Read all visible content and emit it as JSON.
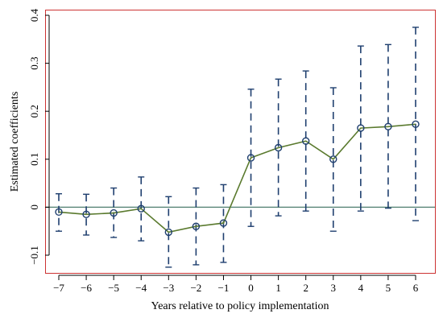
{
  "chart_data": {
    "type": "line",
    "title": "",
    "xlabel": "Years relative to policy implementation",
    "ylabel": "Estimated coefficients",
    "x": [
      -7,
      -6,
      -5,
      -4,
      -3,
      -2,
      -1,
      0,
      1,
      2,
      3,
      4,
      5,
      6
    ],
    "x_tick_labels": [
      "−7",
      "−6",
      "−5",
      "−4",
      "−3",
      "−2",
      "−1",
      "0",
      "1",
      "2",
      "3",
      "4",
      "5",
      "6"
    ],
    "y_ticks": [
      -0.1,
      0,
      0.1,
      0.2,
      0.3,
      0.4
    ],
    "y_tick_labels": [
      "−0.1",
      "0",
      "0.1",
      "0.2",
      "0.3",
      "0.4"
    ],
    "xlim": [
      -7.5,
      6.5
    ],
    "ylim": [
      -0.13,
      0.41
    ],
    "series": [
      {
        "values": [
          -0.01,
          -0.015,
          -0.012,
          -0.003,
          -0.052,
          -0.04,
          -0.033,
          0.103,
          0.124,
          0.138,
          0.1,
          0.165,
          0.168,
          0.173
        ],
        "ci_lower": [
          -0.05,
          -0.058,
          -0.063,
          -0.07,
          -0.125,
          -0.12,
          -0.115,
          -0.04,
          -0.018,
          -0.008,
          -0.05,
          -0.008,
          -0.002,
          -0.028
        ],
        "ci_upper": [
          0.028,
          0.027,
          0.04,
          0.063,
          0.022,
          0.04,
          0.047,
          0.246,
          0.267,
          0.284,
          0.249,
          0.336,
          0.339,
          0.375
        ]
      }
    ],
    "reference_line_y": 0,
    "grid": false,
    "colors": {
      "line": "#5a7a2e",
      "marker": "#1f3f6f",
      "ci": "#1f3f6f",
      "reference": "#4f7f6f",
      "frame": "#cc3333",
      "axis": "#000000"
    }
  }
}
